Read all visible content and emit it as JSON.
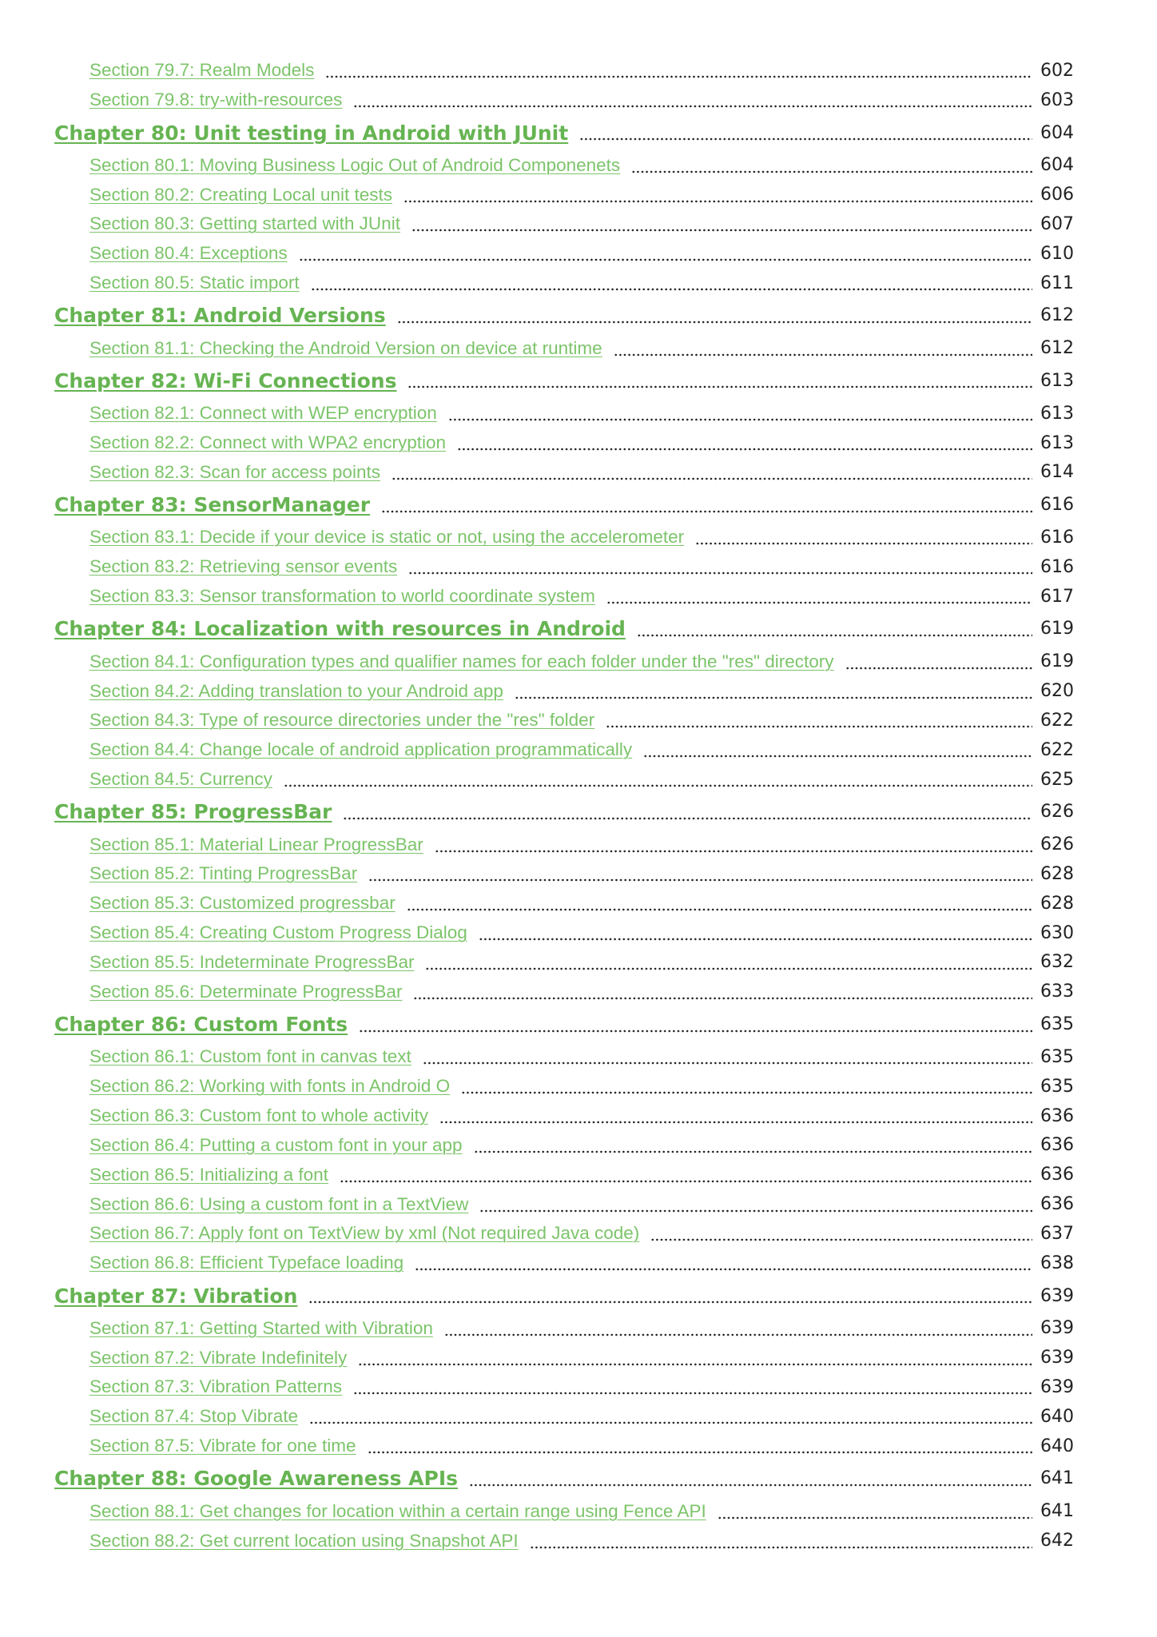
{
  "toc": [
    {
      "type": "section",
      "title": "Section 79.7: Realm Models",
      "page": "602"
    },
    {
      "type": "section",
      "title": "Section 79.8: try-with-resources",
      "page": "603"
    },
    {
      "type": "chapter",
      "title": "Chapter 80: Unit testing in Android with JUnit",
      "page": "604"
    },
    {
      "type": "section",
      "title": "Section 80.1: Moving Business Logic Out of Android Componenets",
      "page": "604"
    },
    {
      "type": "section",
      "title": "Section 80.2: Creating Local unit tests",
      "page": "606"
    },
    {
      "type": "section",
      "title": "Section 80.3: Getting started with JUnit",
      "page": "607"
    },
    {
      "type": "section",
      "title": "Section 80.4: Exceptions",
      "page": "610"
    },
    {
      "type": "section",
      "title": "Section 80.5: Static import",
      "page": "611"
    },
    {
      "type": "chapter",
      "title": "Chapter 81: Android Versions",
      "page": "612"
    },
    {
      "type": "section",
      "title": "Section 81.1: Checking the Android Version on device at runtime",
      "page": "612"
    },
    {
      "type": "chapter",
      "title": "Chapter 82: Wi-Fi Connections",
      "page": "613"
    },
    {
      "type": "section",
      "title": "Section 82.1: Connect with WEP encryption",
      "page": "613"
    },
    {
      "type": "section",
      "title": "Section 82.2: Connect with WPA2 encryption",
      "page": "613"
    },
    {
      "type": "section",
      "title": "Section 82.3: Scan for access points",
      "page": "614"
    },
    {
      "type": "chapter",
      "title": "Chapter 83: SensorManager",
      "page": "616"
    },
    {
      "type": "section",
      "title": "Section 83.1: Decide if your device is static or not, using the accelerometer",
      "page": "616"
    },
    {
      "type": "section",
      "title": "Section 83.2: Retrieving sensor events",
      "page": "616"
    },
    {
      "type": "section",
      "title": "Section 83.3: Sensor transformation to world coordinate system",
      "page": "617"
    },
    {
      "type": "chapter",
      "title": "Chapter 84: Localization with resources in Android",
      "page": "619"
    },
    {
      "type": "section",
      "title": "Section 84.1: Configuration types and qualifier names for each folder under the \"res\" directory",
      "page": "619"
    },
    {
      "type": "section",
      "title": "Section 84.2: Adding translation to your Android app",
      "page": "620"
    },
    {
      "type": "section",
      "title": "Section 84.3: Type of resource directories under the \"res\" folder",
      "page": "622"
    },
    {
      "type": "section",
      "title": "Section 84.4: Change locale of android application programmatically",
      "page": "622"
    },
    {
      "type": "section",
      "title": "Section 84.5: Currency",
      "page": "625"
    },
    {
      "type": "chapter",
      "title": "Chapter 85: ProgressBar",
      "page": "626"
    },
    {
      "type": "section",
      "title": "Section 85.1: Material Linear ProgressBar",
      "page": "626"
    },
    {
      "type": "section",
      "title": "Section 85.2: Tinting ProgressBar",
      "page": "628"
    },
    {
      "type": "section",
      "title": "Section 85.3: Customized progressbar",
      "page": "628"
    },
    {
      "type": "section",
      "title": "Section 85.4: Creating Custom Progress Dialog",
      "page": "630"
    },
    {
      "type": "section",
      "title": "Section 85.5: Indeterminate ProgressBar",
      "page": "632"
    },
    {
      "type": "section",
      "title": "Section 85.6: Determinate ProgressBar",
      "page": "633"
    },
    {
      "type": "chapter",
      "title": "Chapter 86: Custom Fonts",
      "page": "635"
    },
    {
      "type": "section",
      "title": "Section 86.1: Custom font in canvas text",
      "page": "635"
    },
    {
      "type": "section",
      "title": "Section 86.2: Working with fonts in Android O",
      "page": "635"
    },
    {
      "type": "section",
      "title": "Section 86.3: Custom font to whole activity",
      "page": "636"
    },
    {
      "type": "section",
      "title": "Section 86.4: Putting a custom font in your app",
      "page": "636"
    },
    {
      "type": "section",
      "title": "Section 86.5: Initializing a font",
      "page": "636"
    },
    {
      "type": "section",
      "title": "Section 86.6: Using a custom font in a TextView",
      "page": "636"
    },
    {
      "type": "section",
      "title": "Section 86.7: Apply font on TextView by xml (Not required Java code)",
      "page": "637"
    },
    {
      "type": "section",
      "title": "Section 86.8: Efficient Typeface loading",
      "page": "638"
    },
    {
      "type": "chapter",
      "title": "Chapter 87: Vibration",
      "page": "639"
    },
    {
      "type": "section",
      "title": "Section 87.1: Getting Started with Vibration ",
      "page": "639"
    },
    {
      "type": "section",
      "title": "Section 87.2: Vibrate Indefinitely",
      "page": "639"
    },
    {
      "type": "section",
      "title": "Section 87.3: Vibration Patterns",
      "page": "639"
    },
    {
      "type": "section",
      "title": "Section 87.4: Stop Vibrate",
      "page": "640"
    },
    {
      "type": "section",
      "title": "Section 87.5: Vibrate for one time",
      "page": "640"
    },
    {
      "type": "chapter",
      "title": "Chapter 88: Google Awareness APIs",
      "page": "641"
    },
    {
      "type": "section",
      "title": "Section 88.1: Get changes for location within a certain range using Fence API",
      "page": "641"
    },
    {
      "type": "section",
      "title": "Section 88.2: Get current location using Snapshot API",
      "page": "642"
    }
  ],
  "colors": {
    "chapter_link": "#66b452",
    "section_link": "#7cc46a",
    "page_number": "#222222"
  }
}
